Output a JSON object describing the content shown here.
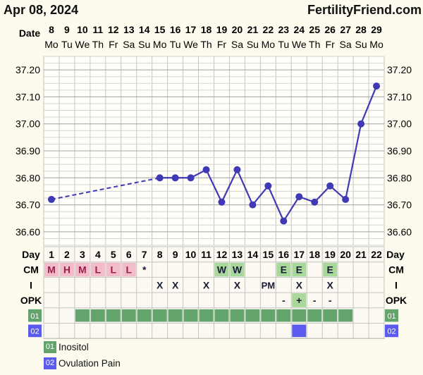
{
  "header": {
    "date": "Apr 08, 2024",
    "site": "FertilityFriend.com"
  },
  "chart_data": {
    "type": "line",
    "temp_unit": "°C",
    "ylim": [
      36.55,
      37.25
    ],
    "y_ticks": [
      "36.60",
      "36.70",
      "36.80",
      "36.90",
      "37.00",
      "37.10",
      "37.20"
    ],
    "grid": true,
    "date_row_label": "Date",
    "day_row_label": "Day",
    "dates": [
      "8",
      "9",
      "10",
      "11",
      "12",
      "13",
      "14",
      "15",
      "16",
      "17",
      "18",
      "19",
      "20",
      "21",
      "22",
      "23",
      "24",
      "25",
      "26",
      "27",
      "28",
      "29"
    ],
    "weekdays": [
      "Mo",
      "Tu",
      "We",
      "Th",
      "Fr",
      "Sa",
      "Su",
      "Mo",
      "Tu",
      "We",
      "Th",
      "Fr",
      "Sa",
      "Su",
      "Mo",
      "Tu",
      "We",
      "Th",
      "Fr",
      "Sa",
      "Su",
      "Mo"
    ],
    "cycle_days": [
      "1",
      "2",
      "3",
      "4",
      "5",
      "6",
      "7",
      "8",
      "9",
      "10",
      "11",
      "12",
      "13",
      "14",
      "15",
      "16",
      "17",
      "18",
      "19",
      "20",
      "21",
      "22"
    ],
    "temperatures": [
      36.72,
      null,
      null,
      null,
      null,
      null,
      null,
      36.8,
      36.8,
      36.8,
      36.83,
      36.71,
      36.83,
      36.7,
      36.77,
      36.64,
      36.73,
      36.71,
      36.77,
      36.72,
      37.0,
      37.14
    ],
    "dashed_segments": [
      [
        1,
        8
      ]
    ],
    "line_color": "#3f3ab4",
    "rows": [
      {
        "label": "CM",
        "cells": [
          "M",
          "H",
          "M",
          "L",
          "L",
          "L",
          "*",
          "",
          "",
          "",
          "",
          "W",
          "W",
          "",
          "",
          "E",
          "E",
          "",
          "E",
          "",
          "",
          ""
        ]
      },
      {
        "label": "I",
        "cells": [
          "",
          "",
          "",
          "",
          "",
          "",
          "",
          "X",
          "X",
          "",
          "X",
          "",
          "X",
          "",
          "PM",
          "",
          "X",
          "",
          "X",
          "",
          "",
          ""
        ]
      },
      {
        "label": "OPK",
        "cells": [
          "",
          "",
          "",
          "",
          "",
          "",
          "",
          "",
          "",
          "",
          "",
          "",
          "",
          "",
          "",
          "-",
          "+",
          "-",
          "-",
          "",
          "",
          ""
        ]
      }
    ],
    "menstruation_color": "#f2bccb",
    "fertile_color": "#a9d99a",
    "custom_rows": [
      {
        "code": "01",
        "name": "Inositol",
        "color": "#62a46c",
        "days": [
          3,
          4,
          5,
          6,
          7,
          8,
          9,
          10,
          11,
          12,
          13,
          14,
          15,
          16,
          17,
          18,
          19,
          20
        ]
      },
      {
        "code": "02",
        "name": "Ovulation Pain",
        "color": "#5b5bef",
        "days": [
          17
        ]
      }
    ]
  }
}
